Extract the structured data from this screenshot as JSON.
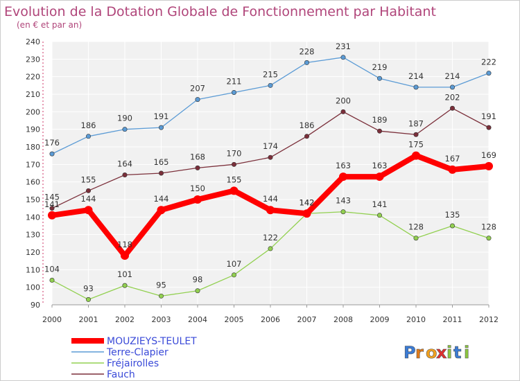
{
  "header": {
    "title": "Evolution de la Dotation Globale de Fonctionnement par Habitant",
    "subtitle": "(en € et par an)"
  },
  "logo": {
    "text": "Proxiti"
  },
  "chart_data": {
    "type": "line",
    "title": "Evolution de la Dotation Globale de Fonctionnement par Habitant",
    "subtitle": "(en € et par an)",
    "x": [
      "2000",
      "2001",
      "2002",
      "2003",
      "2004",
      "2005",
      "2006",
      "2007",
      "2008",
      "2009",
      "2010",
      "2011",
      "2012"
    ],
    "ylim": [
      90,
      240
    ],
    "yticks": [
      90,
      100,
      110,
      120,
      130,
      140,
      150,
      160,
      170,
      180,
      190,
      200,
      210,
      220,
      230,
      240
    ],
    "grid": true,
    "legend_position": "bottom-left",
    "series": [
      {
        "name": "MOUZIEYS-TEULET",
        "color": "#ff0000",
        "values": [
          141,
          144,
          118,
          144,
          150,
          155,
          144,
          142,
          163,
          163,
          175,
          167,
          169
        ]
      },
      {
        "name": "Terre-Clapier",
        "color": "#5b9bd5",
        "values": [
          176,
          186,
          190,
          191,
          207,
          211,
          215,
          228,
          231,
          219,
          214,
          214,
          222
        ]
      },
      {
        "name": "Fréjairolles",
        "color": "#92d050",
        "values": [
          104,
          93,
          101,
          95,
          98,
          107,
          122,
          142,
          143,
          141,
          128,
          135,
          128
        ]
      },
      {
        "name": "Fauch",
        "color": "#7b2f3a",
        "values": [
          145,
          155,
          164,
          165,
          168,
          170,
          174,
          186,
          200,
          189,
          187,
          202,
          191
        ]
      }
    ]
  }
}
